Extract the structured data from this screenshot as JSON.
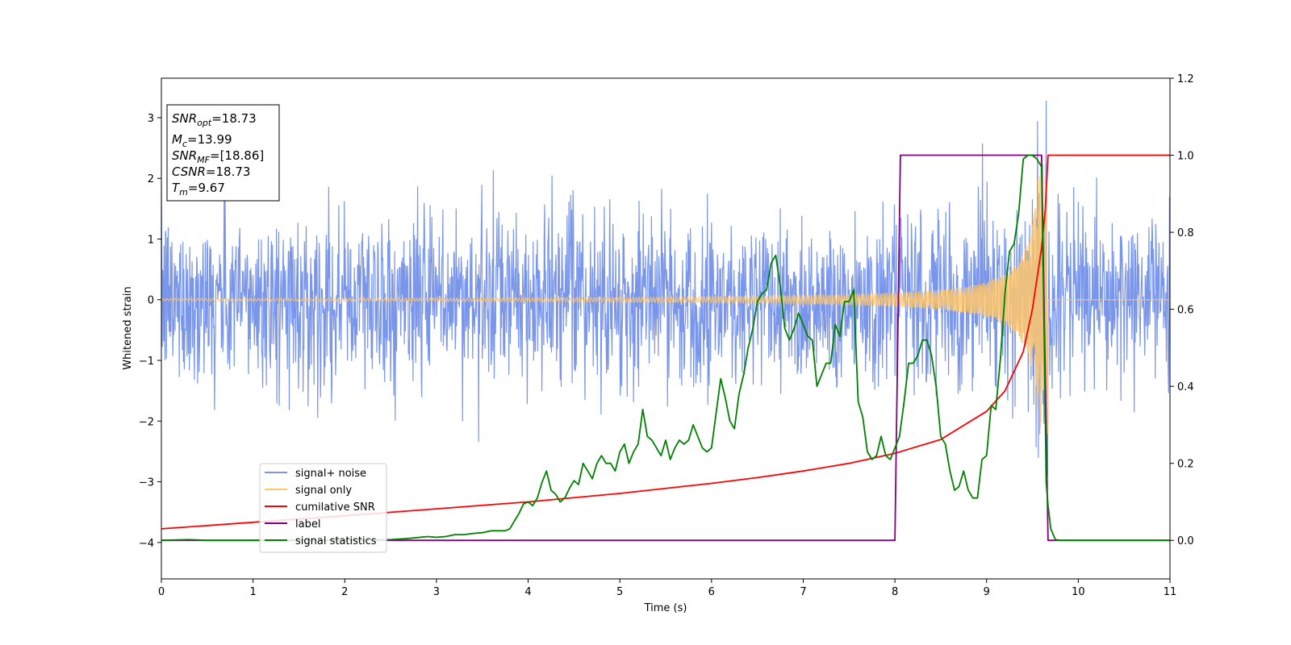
{
  "chart_data": {
    "type": "line",
    "title": "",
    "xlabel": "Time (s)",
    "ylabel": "Whitened strain",
    "xlim": [
      0,
      11
    ],
    "ylim_left": [
      -4.6,
      3.65
    ],
    "ylim_right": [
      -0.1,
      1.2
    ],
    "x_ticks": [
      "0",
      "1",
      "2",
      "3",
      "4",
      "5",
      "6",
      "7",
      "8",
      "9",
      "10",
      "11"
    ],
    "y_left_ticks": [
      "−4",
      "−3",
      "−2",
      "−1",
      "0",
      "1",
      "2",
      "3"
    ],
    "y_left_tick_values": [
      -4,
      -3,
      -2,
      -1,
      0,
      1,
      2,
      3
    ],
    "y_right_ticks": [
      "0.0",
      "0.2",
      "0.4",
      "0.6",
      "0.8",
      "1.0",
      "1.2"
    ],
    "y_right_tick_values": [
      0.0,
      0.2,
      0.4,
      0.6,
      0.8,
      1.0,
      1.2
    ],
    "grid": false,
    "legend_position": "lower-left",
    "info_box": {
      "snr_opt": {
        "base": "SNR",
        "sub": "opt",
        "value": "=18.73"
      },
      "mc": {
        "base": "M",
        "sub": "c",
        "value": "=13.99"
      },
      "snr_mf": {
        "base": "SNR",
        "sub": "MF",
        "value": "=[18.86]"
      },
      "csnr": {
        "base": "CSNR",
        "value": "=18.73"
      },
      "tm": {
        "base": "T",
        "sub": "m",
        "value": "=9.67"
      }
    },
    "series": [
      {
        "name": "signal+ noise",
        "axis": "left",
        "color": "#4169e1",
        "description_values": {
          "noise_std": 0.7,
          "spike_max": 3.28,
          "spike_min": -2.6,
          "sample_step": 0.005
        }
      },
      {
        "name": "signal only",
        "axis": "left",
        "color": "#ffc76b",
        "chirp": {
          "t_merge": 9.67,
          "amp_at_start": 0.02,
          "amp_peak": 2.3
        }
      },
      {
        "name": "cumilative SNR",
        "axis": "right",
        "color": "#ff0000",
        "x": [
          0,
          1,
          2,
          3,
          4,
          5,
          6,
          6.5,
          7,
          7.5,
          8,
          8.5,
          9,
          9.2,
          9.4,
          9.5,
          9.6,
          9.64,
          9.67,
          11
        ],
        "y": [
          0.03,
          0.047,
          0.064,
          0.082,
          0.1,
          0.122,
          0.148,
          0.163,
          0.18,
          0.2,
          0.226,
          0.262,
          0.335,
          0.388,
          0.49,
          0.6,
          0.76,
          0.86,
          1.0,
          1.0
        ]
      },
      {
        "name": "label",
        "axis": "right",
        "color": "#800080",
        "x": [
          0,
          8.0,
          8.06,
          9.6,
          9.67,
          11
        ],
        "y": [
          0.0,
          0.0,
          1.0,
          1.0,
          0.0,
          0.0
        ]
      },
      {
        "name": "signal statistics",
        "axis": "right",
        "color": "#008000",
        "x": [
          0,
          0.3,
          0.5,
          1,
          1.5,
          2,
          2.5,
          2.7,
          2.9,
          3.0,
          3.1,
          3.2,
          3.3,
          3.4,
          3.5,
          3.6,
          3.7,
          3.75,
          3.8,
          3.9,
          3.95,
          4.0,
          4.05,
          4.1,
          4.15,
          4.2,
          4.25,
          4.3,
          4.35,
          4.4,
          4.45,
          4.5,
          4.55,
          4.6,
          4.65,
          4.7,
          4.75,
          4.8,
          4.85,
          4.9,
          4.95,
          5.0,
          5.05,
          5.1,
          5.15,
          5.2,
          5.25,
          5.3,
          5.35,
          5.4,
          5.45,
          5.5,
          5.55,
          5.6,
          5.65,
          5.7,
          5.75,
          5.8,
          5.85,
          5.9,
          5.95,
          6.0,
          6.05,
          6.1,
          6.15,
          6.2,
          6.25,
          6.3,
          6.35,
          6.4,
          6.45,
          6.5,
          6.55,
          6.6,
          6.65,
          6.7,
          6.75,
          6.8,
          6.85,
          6.9,
          6.95,
          7.0,
          7.05,
          7.1,
          7.15,
          7.2,
          7.25,
          7.3,
          7.35,
          7.4,
          7.45,
          7.5,
          7.55,
          7.6,
          7.65,
          7.7,
          7.75,
          7.8,
          7.85,
          7.9,
          7.95,
          8.0,
          8.05,
          8.1,
          8.15,
          8.2,
          8.25,
          8.3,
          8.35,
          8.4,
          8.45,
          8.5,
          8.55,
          8.6,
          8.65,
          8.7,
          8.75,
          8.8,
          8.85,
          8.9,
          8.95,
          9.0,
          9.05,
          9.1,
          9.15,
          9.2,
          9.25,
          9.3,
          9.35,
          9.4,
          9.45,
          9.5,
          9.55,
          9.6,
          9.63,
          9.65,
          9.67,
          9.7,
          9.75,
          9.8,
          10,
          11
        ],
        "y": [
          0.0,
          0.002,
          0.0,
          0.0,
          0.001,
          0.0,
          0.002,
          0.005,
          0.01,
          0.008,
          0.01,
          0.015,
          0.015,
          0.018,
          0.02,
          0.025,
          0.025,
          0.025,
          0.03,
          0.07,
          0.095,
          0.1,
          0.09,
          0.11,
          0.15,
          0.18,
          0.13,
          0.12,
          0.1,
          0.11,
          0.135,
          0.155,
          0.145,
          0.2,
          0.18,
          0.16,
          0.2,
          0.22,
          0.2,
          0.2,
          0.18,
          0.23,
          0.25,
          0.2,
          0.23,
          0.25,
          0.34,
          0.27,
          0.26,
          0.24,
          0.22,
          0.26,
          0.21,
          0.24,
          0.26,
          0.25,
          0.26,
          0.3,
          0.27,
          0.24,
          0.23,
          0.24,
          0.33,
          0.42,
          0.37,
          0.31,
          0.29,
          0.38,
          0.43,
          0.5,
          0.55,
          0.62,
          0.64,
          0.65,
          0.72,
          0.74,
          0.66,
          0.55,
          0.52,
          0.55,
          0.59,
          0.56,
          0.53,
          0.52,
          0.4,
          0.43,
          0.46,
          0.46,
          0.56,
          0.53,
          0.62,
          0.62,
          0.65,
          0.36,
          0.32,
          0.23,
          0.21,
          0.22,
          0.27,
          0.22,
          0.21,
          0.24,
          0.27,
          0.36,
          0.46,
          0.46,
          0.48,
          0.52,
          0.52,
          0.48,
          0.4,
          0.27,
          0.25,
          0.18,
          0.13,
          0.14,
          0.18,
          0.13,
          0.11,
          0.11,
          0.21,
          0.22,
          0.35,
          0.34,
          0.47,
          0.64,
          0.75,
          0.77,
          0.85,
          0.99,
          1.0,
          1.0,
          0.99,
          0.97,
          0.5,
          0.15,
          0.09,
          0.03,
          0.002,
          0.0,
          0.0,
          0.0
        ]
      }
    ]
  }
}
